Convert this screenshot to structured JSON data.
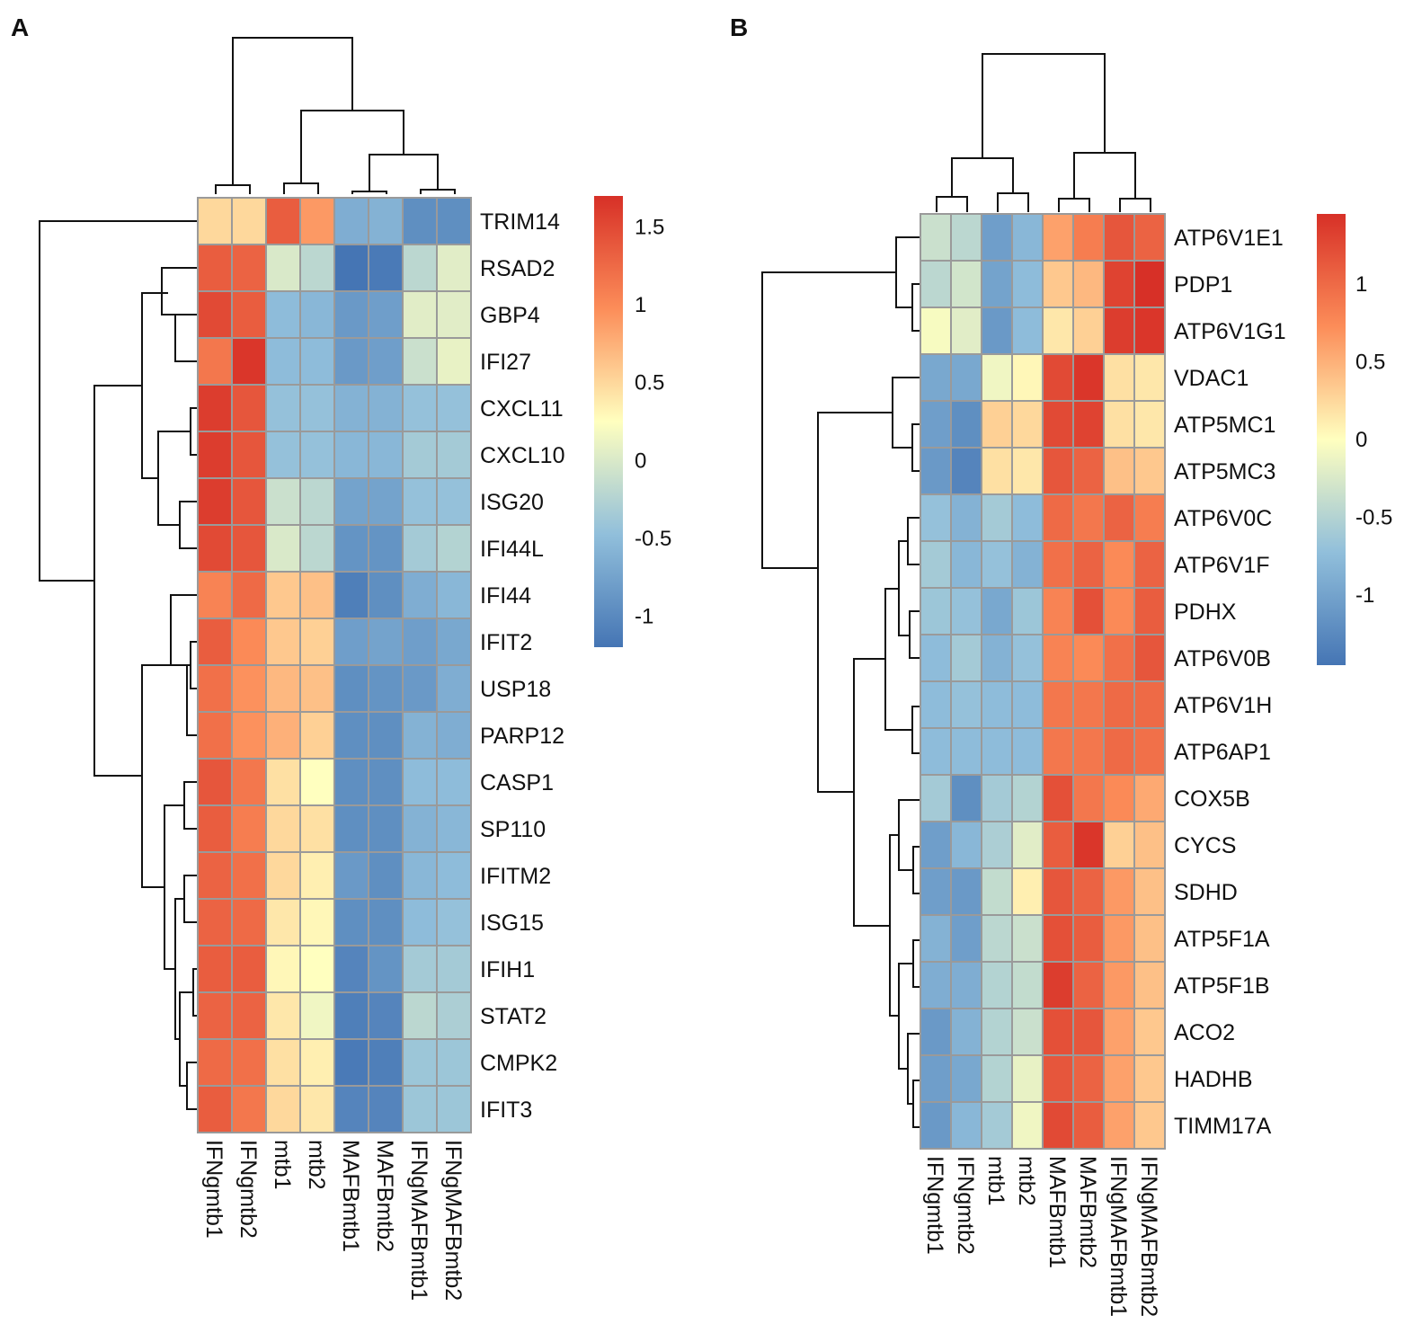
{
  "chart_data": [
    {
      "type": "heatmap",
      "panel": "A",
      "columns": [
        "IFNgmtb1",
        "IFNgmtb2",
        "mtb1",
        "mtb2",
        "MAFBmtb1",
        "MAFBmtb2",
        "IFNgMAFBmtb1",
        "IFNgMAFBmtb2"
      ],
      "rows": [
        "TRIM14",
        "RSAD2",
        "GBP4",
        "IFI27",
        "CXCL11",
        "CXCL10",
        "ISG20",
        "IFI44L",
        "IFI44",
        "IFIT2",
        "USP18",
        "PARP12",
        "CASP1",
        "SP110",
        "IFITM2",
        "ISG15",
        "IFIH1",
        "STAT2",
        "CMPK2",
        "IFIT3"
      ],
      "values": [
        [
          0.5,
          0.5,
          1.35,
          0.9,
          -0.65,
          -0.6,
          -0.95,
          -0.95
        ],
        [
          1.35,
          1.3,
          0.0,
          -0.2,
          -1.2,
          -1.15,
          -0.2,
          0.05
        ],
        [
          1.5,
          1.35,
          -0.5,
          -0.55,
          -0.85,
          -0.8,
          0.05,
          0.05
        ],
        [
          1.15,
          1.65,
          -0.5,
          -0.5,
          -0.85,
          -0.8,
          -0.1,
          0.1
        ],
        [
          1.6,
          1.4,
          -0.45,
          -0.45,
          -0.6,
          -0.6,
          -0.45,
          -0.45
        ],
        [
          1.6,
          1.4,
          -0.45,
          -0.45,
          -0.55,
          -0.55,
          -0.35,
          -0.35
        ],
        [
          1.6,
          1.4,
          -0.1,
          -0.2,
          -0.75,
          -0.75,
          -0.45,
          -0.45
        ],
        [
          1.5,
          1.4,
          0.0,
          -0.2,
          -0.9,
          -0.9,
          -0.35,
          -0.25
        ],
        [
          1.05,
          1.25,
          0.6,
          0.65,
          -1.1,
          -0.95,
          -0.65,
          -0.55
        ],
        [
          1.35,
          1.0,
          0.6,
          0.55,
          -0.8,
          -0.75,
          -0.8,
          -0.7
        ],
        [
          1.2,
          0.95,
          0.7,
          0.65,
          -0.95,
          -0.9,
          -0.85,
          -0.65
        ],
        [
          1.2,
          0.95,
          0.75,
          0.55,
          -0.95,
          -0.95,
          -0.6,
          -0.65
        ],
        [
          1.4,
          1.15,
          0.45,
          0.25,
          -0.95,
          -0.95,
          -0.5,
          -0.5
        ],
        [
          1.35,
          1.1,
          0.5,
          0.45,
          -0.95,
          -0.95,
          -0.6,
          -0.55
        ],
        [
          1.3,
          1.2,
          0.5,
          0.35,
          -0.85,
          -0.95,
          -0.55,
          -0.5
        ],
        [
          1.3,
          1.25,
          0.4,
          0.3,
          -0.95,
          -0.95,
          -0.5,
          -0.45
        ],
        [
          1.35,
          1.35,
          0.3,
          0.25,
          -1.05,
          -0.9,
          -0.35,
          -0.35
        ],
        [
          1.3,
          1.3,
          0.4,
          0.15,
          -1.1,
          -1.05,
          -0.2,
          -0.3
        ],
        [
          1.25,
          1.2,
          0.45,
          0.35,
          -1.15,
          -1.1,
          -0.4,
          -0.4
        ],
        [
          1.35,
          1.15,
          0.5,
          0.4,
          -1.05,
          -1.05,
          -0.4,
          -0.4
        ]
      ],
      "legend_ticks": [
        1.5,
        1,
        0.5,
        0,
        -0.5,
        -1
      ],
      "legend_tick_labels": [
        "1.5",
        "1",
        "0.5",
        "0",
        "-0.5",
        "-1"
      ],
      "legend_range": [
        -1.2,
        1.7
      ],
      "colors": {
        "low": "#4575b4",
        "mid_low": "#91bfdb",
        "mid": "#ffffbf",
        "mid_high": "#fc8d59",
        "high": "#d73027"
      }
    },
    {
      "type": "heatmap",
      "panel": "B",
      "columns": [
        "IFNgmtb1",
        "IFNgmtb2",
        "mtb1",
        "mtb2",
        "MAFBmtb1",
        "MAFBmtb2",
        "IFNgMAFBmtb1",
        "IFNgMAFBmtb2"
      ],
      "rows": [
        "ATP6V1E1",
        "PDP1",
        "ATP6V1G1",
        "VDAC1",
        "ATP5MC1",
        "ATP5MC3",
        "ATP6V0C",
        "ATP6V1F",
        "PDHX",
        "ATP6V0B",
        "ATP6V1H",
        "ATP6AP1",
        "COX5B",
        "CYCS",
        "SDHD",
        "ATP5F1A",
        "ATP5F1B",
        "ACO2",
        "HADHB",
        "TIMM17A"
      ],
      "values": [
        [
          -0.35,
          -0.45,
          -1.05,
          -0.8,
          0.6,
          0.85,
          1.15,
          1.05
        ],
        [
          -0.45,
          -0.3,
          -1.0,
          -0.75,
          0.35,
          0.45,
          1.3,
          1.45
        ],
        [
          -0.05,
          -0.2,
          -1.1,
          -0.75,
          0.15,
          0.3,
          1.35,
          1.4
        ],
        [
          -0.95,
          -0.95,
          -0.1,
          0.05,
          1.25,
          1.4,
          0.2,
          0.15
        ],
        [
          -1.05,
          -1.2,
          0.3,
          0.25,
          1.25,
          1.3,
          0.2,
          0.15
        ],
        [
          -1.1,
          -1.3,
          0.2,
          0.15,
          1.15,
          1.05,
          0.4,
          0.35
        ],
        [
          -0.7,
          -0.85,
          -0.6,
          -0.75,
          1.0,
          0.9,
          1.05,
          0.85
        ],
        [
          -0.6,
          -0.8,
          -0.7,
          -0.85,
          0.95,
          1.05,
          0.75,
          1.05
        ],
        [
          -0.65,
          -0.7,
          -0.95,
          -0.65,
          0.8,
          1.2,
          0.75,
          1.1
        ],
        [
          -0.75,
          -0.6,
          -0.85,
          -0.7,
          0.8,
          0.75,
          0.95,
          1.15
        ],
        [
          -0.75,
          -0.7,
          -0.75,
          -0.75,
          0.9,
          0.9,
          1.0,
          1.0
        ],
        [
          -0.75,
          -0.75,
          -0.75,
          -0.75,
          0.9,
          0.9,
          1.0,
          0.95
        ],
        [
          -0.6,
          -1.2,
          -0.6,
          -0.5,
          1.2,
          0.9,
          0.75,
          0.55
        ],
        [
          -1.05,
          -0.8,
          -0.55,
          -0.2,
          1.1,
          1.4,
          0.3,
          0.4
        ],
        [
          -1.05,
          -1.1,
          -0.4,
          0.1,
          1.15,
          1.05,
          0.65,
          0.4
        ],
        [
          -0.85,
          -1.05,
          -0.45,
          -0.35,
          1.2,
          1.1,
          0.65,
          0.4
        ],
        [
          -0.9,
          -0.9,
          -0.5,
          -0.4,
          1.35,
          1.05,
          0.65,
          0.4
        ],
        [
          -1.1,
          -0.85,
          -0.5,
          -0.35,
          1.2,
          1.15,
          0.6,
          0.35
        ],
        [
          -1.05,
          -0.95,
          -0.5,
          -0.15,
          1.15,
          1.05,
          0.6,
          0.35
        ],
        [
          -1.1,
          -0.8,
          -0.6,
          -0.1,
          1.25,
          1.1,
          0.6,
          0.35
        ]
      ],
      "legend_ticks": [
        1,
        0.5,
        0,
        -0.5,
        -1
      ],
      "legend_tick_labels": [
        "1",
        "0.5",
        "0",
        "-0.5",
        "-1"
      ],
      "legend_range": [
        -1.45,
        1.45
      ],
      "colors": {
        "low": "#4575b4",
        "mid_low": "#91bfdb",
        "mid": "#ffffbf",
        "mid_high": "#fc8d59",
        "high": "#d73027"
      }
    }
  ]
}
